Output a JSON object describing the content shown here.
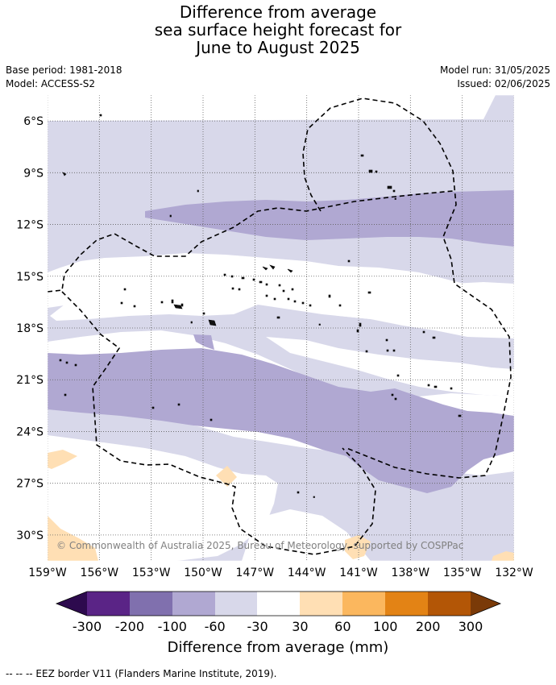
{
  "title": [
    "Difference from average",
    "sea surface height forecast for",
    "June to August 2025"
  ],
  "meta_left": [
    "Base period: 1981-2018",
    "Model: ACCESS-S2"
  ],
  "meta_right": [
    "Model run: 31/05/2025",
    "Issued: 02/06/2025"
  ],
  "map": {
    "lon_range": [
      -159,
      -132
    ],
    "lat_range": [
      -31.5,
      -4.5
    ],
    "lat_ticks": [
      {
        "value": -6,
        "label": "6°S"
      },
      {
        "value": -9,
        "label": "9°S"
      },
      {
        "value": -12,
        "label": "12°S"
      },
      {
        "value": -15,
        "label": "15°S"
      },
      {
        "value": -18,
        "label": "18°S"
      },
      {
        "value": -21,
        "label": "21°S"
      },
      {
        "value": -24,
        "label": "24°S"
      },
      {
        "value": -27,
        "label": "27°S"
      },
      {
        "value": -30,
        "label": "30°S"
      }
    ],
    "lon_ticks": [
      {
        "value": -159,
        "label": "159°W"
      },
      {
        "value": -156,
        "label": "156°W"
      },
      {
        "value": -153,
        "label": "153°W"
      },
      {
        "value": -150,
        "label": "150°W"
      },
      {
        "value": -147,
        "label": "147°W"
      },
      {
        "value": -144,
        "label": "144°W"
      },
      {
        "value": -141,
        "label": "141°W"
      },
      {
        "value": -138,
        "label": "138°W"
      },
      {
        "value": -135,
        "label": "135°W"
      },
      {
        "value": -132,
        "label": "132°W"
      }
    ],
    "copyright": "© Commonwealth of Australia 2025, Bureau of Meteorology, supported by COSPPac"
  },
  "legend": {
    "ticks": [
      "-300",
      "-200",
      "-100",
      "-60",
      "-30",
      "30",
      "60",
      "100",
      "200",
      "300"
    ],
    "colors": {
      "under": "#2d0a4e",
      "c1": "#5a2486",
      "c2": "#8070ae",
      "c3": "#b0a8d2",
      "c4": "#d8d8ea",
      "c5": "#ffffff",
      "c6": "#ffdfb4",
      "c7": "#fbb75e",
      "c8": "#e38315",
      "c9": "#b35606",
      "over": "#7a3a08"
    },
    "label": "Difference from average (mm)"
  },
  "footer": "-- -- -- EEZ border V11 (Flanders Marine Institute, 2019)."
}
